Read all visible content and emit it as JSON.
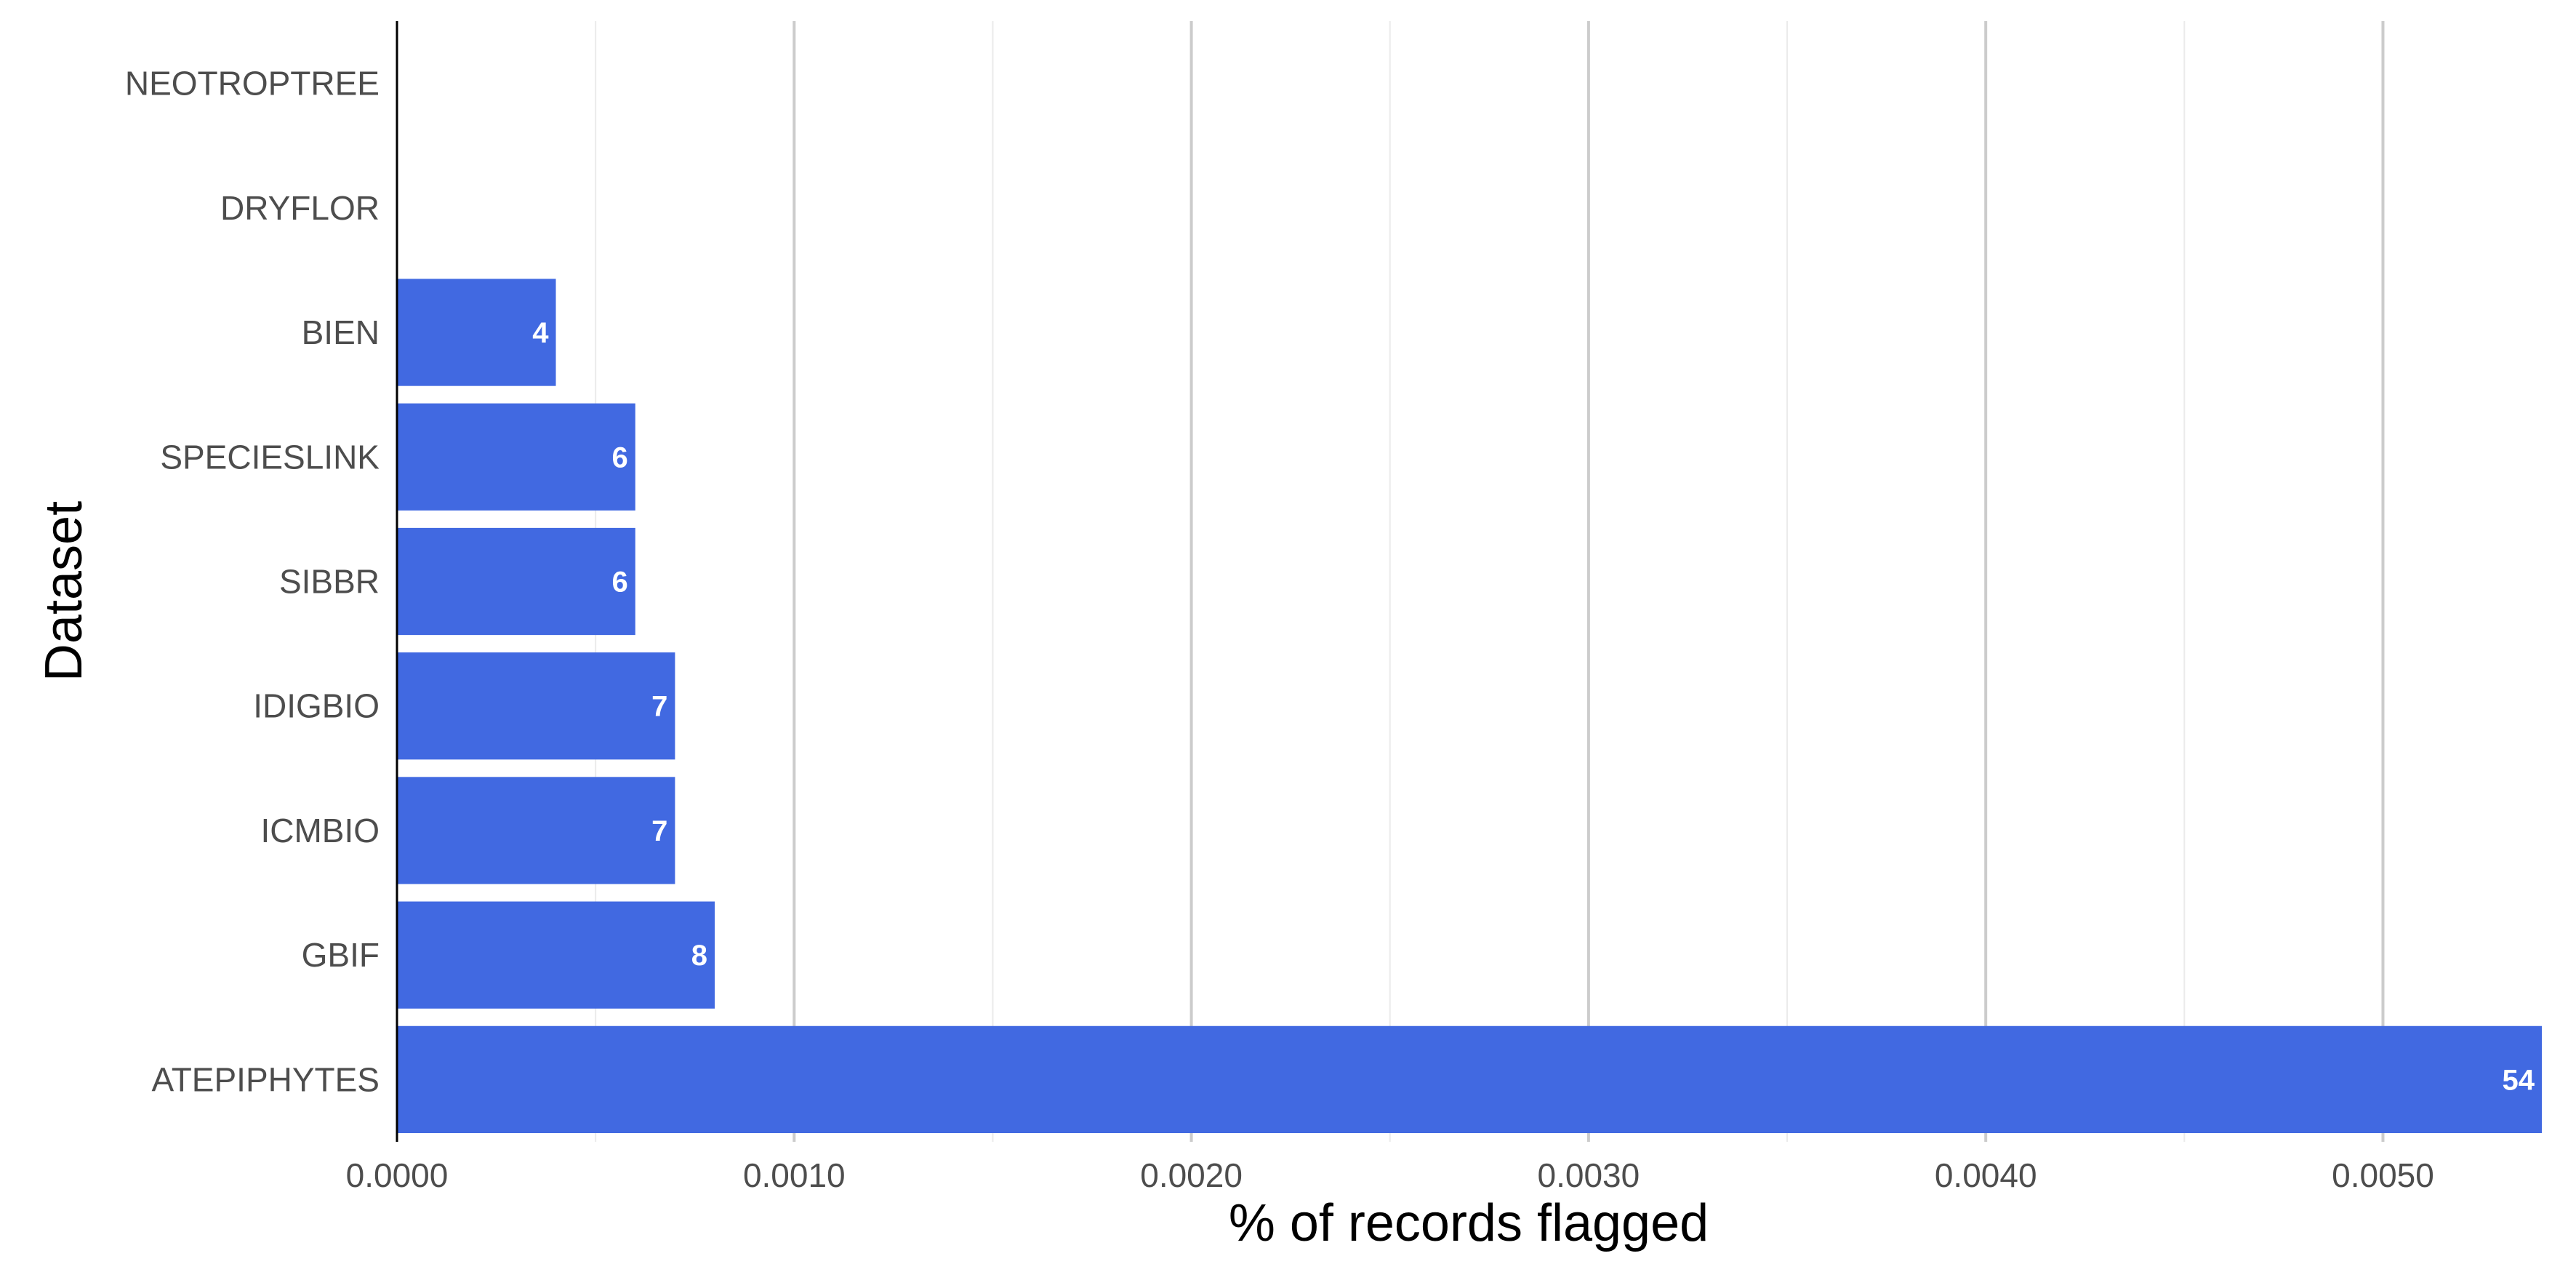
{
  "chart_data": {
    "type": "bar",
    "orientation": "horizontal",
    "categories": [
      "ATEPIPHYTES",
      "GBIF",
      "ICMBIO",
      "IDIGBIO",
      "SIBBR",
      "SPECIESLINK",
      "BIEN",
      "DRYFLOR",
      "NEOTROPTREE"
    ],
    "values": [
      0.0054,
      0.0008,
      0.0007,
      0.0007,
      0.0006,
      0.0006,
      0.0004,
      0,
      0
    ],
    "labels": [
      "54",
      "8",
      "7",
      "7",
      "6",
      "6",
      "4",
      "",
      ""
    ],
    "xlabel": "% of records flagged",
    "ylabel": "Dataset",
    "xlim": [
      0,
      0.0054
    ],
    "x_ticks": [
      0,
      0.001,
      0.002,
      0.003,
      0.004,
      0.005
    ],
    "x_tick_labels": [
      "0.0000",
      "0.0010",
      "0.0020",
      "0.0030",
      "0.0040",
      "0.0050"
    ],
    "grid": true,
    "legend": "none",
    "bar_color": "#4169E1"
  }
}
